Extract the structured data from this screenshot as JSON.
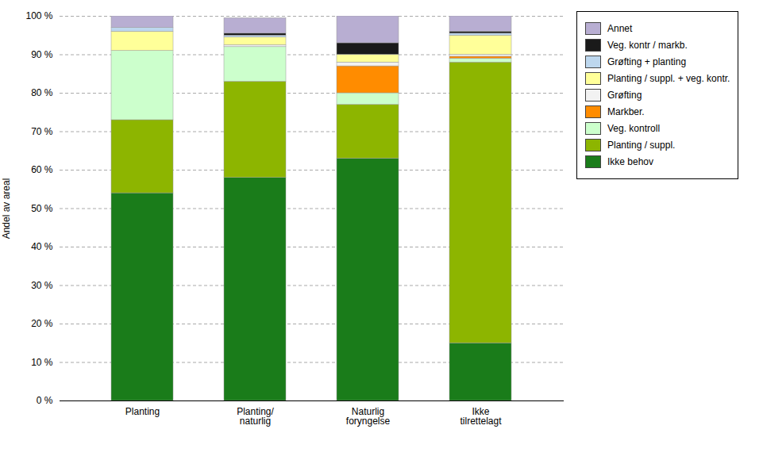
{
  "chart_data": {
    "type": "bar",
    "stacked": true,
    "categories": [
      "Planting",
      "Planting/\nnaturlig",
      "Naturlig\nforyngelse",
      "Ikke\ntilrettelagt"
    ],
    "series": [
      {
        "name": "Ikke behov",
        "color": "#1a7c1a",
        "values": [
          54,
          58,
          63,
          15
        ]
      },
      {
        "name": "Planting / suppl.",
        "color": "#8db500",
        "values": [
          19,
          25,
          14,
          73
        ]
      },
      {
        "name": "Veg. kontroll",
        "color": "#ccffcc",
        "values": [
          18,
          9,
          3,
          1
        ]
      },
      {
        "name": "Markber.",
        "color": "#ff8c00",
        "values": [
          0,
          0,
          7,
          0.5
        ]
      },
      {
        "name": "Grøfting",
        "color": "#f2f2f2",
        "values": [
          0,
          0.5,
          1,
          0.5
        ]
      },
      {
        "name": "Planting / suppl. + veg. kontr.",
        "color": "#ffff99",
        "values": [
          5,
          2,
          2,
          5
        ]
      },
      {
        "name": "Grøfting + planting",
        "color": "#bdd7ee",
        "values": [
          1,
          0.5,
          0,
          0.5
        ]
      },
      {
        "name": "Veg. kontr / markb.",
        "color": "#1a1a1a",
        "values": [
          0,
          0.5,
          3,
          0.5
        ]
      },
      {
        "name": "Annet",
        "color": "#b8aed2",
        "values": [
          3,
          4,
          7,
          4
        ]
      }
    ],
    "ylabel": "Andel av areal",
    "ylim": [
      0,
      100
    ],
    "yticks": [
      {
        "value": 0,
        "label": "0 %"
      },
      {
        "value": 10,
        "label": "10 %"
      },
      {
        "value": 20,
        "label": "20 %"
      },
      {
        "value": 30,
        "label": "30 %"
      },
      {
        "value": 40,
        "label": "40 %"
      },
      {
        "value": 50,
        "label": "50 %"
      },
      {
        "value": 60,
        "label": "60 %"
      },
      {
        "value": 70,
        "label": "70 %"
      },
      {
        "value": 80,
        "label": "80 %"
      },
      {
        "value": 90,
        "label": "90 %"
      },
      {
        "value": 100,
        "label": "100 %"
      }
    ],
    "grid": true,
    "legend": "right"
  }
}
